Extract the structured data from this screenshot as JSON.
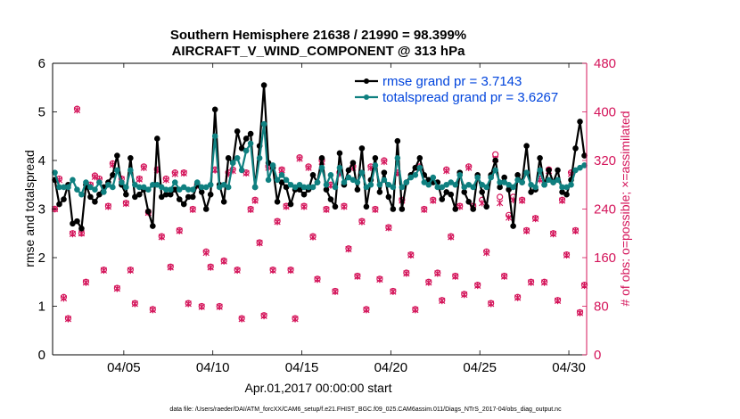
{
  "chart_data": {
    "type": "line",
    "title": "Southern Hemisphere 21638 / 21990 = 98.399%",
    "subtitle": "AIRCRAFT_V_WIND_COMPONENT @ 313 hPa",
    "xlabel": "Apr.01,2017 00:00:00 start",
    "ylabel_left": "rmse and totalspread",
    "ylabel_right": "# of obs: o=possible; ×=assimilated",
    "footer": "data file: /Users/raeder/DAI/ATM_forcXX/CAM6_setup/f.e21.FHIST_BGC.f09_025.CAM6assim.011/Diags_NTrS_2017-04/obs_diag_output.nc",
    "x_ticks": [
      {
        "label": "04/05",
        "day": 5
      },
      {
        "label": "04/10",
        "day": 10
      },
      {
        "label": "04/15",
        "day": 15
      },
      {
        "label": "04/20",
        "day": 20
      },
      {
        "label": "04/25",
        "day": 25
      },
      {
        "label": "04/30",
        "day": 30
      }
    ],
    "xlim": [
      1,
      31
    ],
    "ylim_left": [
      0,
      6
    ],
    "ylim_right": [
      0,
      480
    ],
    "yticks_left": [
      "0",
      "1",
      "2",
      "3",
      "4",
      "5",
      "6"
    ],
    "yticks_right": [
      "0",
      "80",
      "160",
      "240",
      "320",
      "400",
      "480"
    ],
    "legend": [
      {
        "label": "rmse grand pr = 3.7143",
        "color": "#000000"
      },
      {
        "label": "totalspread grand pr = 3.6267",
        "color": "#0f8080"
      }
    ],
    "colors": {
      "rmse": "#000000",
      "spread": "#0f8080",
      "obs": "#d4145a",
      "legend_text": "#0044dd",
      "right_axis": "#d4145a"
    },
    "series": [
      {
        "name": "rmse",
        "x": [
          1.125,
          1.375,
          1.625,
          1.875,
          2.125,
          2.375,
          2.625,
          2.875,
          3.125,
          3.375,
          3.625,
          3.875,
          4.125,
          4.375,
          4.625,
          4.875,
          5.125,
          5.375,
          5.625,
          5.875,
          6.125,
          6.375,
          6.625,
          6.875,
          7.125,
          7.375,
          7.625,
          7.875,
          8.125,
          8.375,
          8.625,
          8.875,
          9.125,
          9.375,
          9.625,
          9.875,
          10.125,
          10.375,
          10.625,
          10.875,
          11.125,
          11.375,
          11.625,
          11.875,
          12.125,
          12.375,
          12.625,
          12.875,
          13.125,
          13.375,
          13.625,
          13.875,
          14.125,
          14.375,
          14.625,
          14.875,
          15.125,
          15.375,
          15.625,
          15.875,
          16.125,
          16.375,
          16.625,
          16.875,
          17.125,
          17.375,
          17.625,
          17.875,
          18.125,
          18.375,
          18.625,
          18.875,
          19.125,
          19.375,
          19.625,
          19.875,
          20.125,
          20.375,
          20.625,
          20.875,
          21.125,
          21.375,
          21.625,
          21.875,
          22.125,
          22.375,
          22.625,
          22.875,
          23.125,
          23.375,
          23.625,
          23.875,
          24.125,
          24.375,
          24.625,
          24.875,
          25.125,
          25.375,
          25.625,
          25.875,
          26.125,
          26.375,
          26.625,
          26.875,
          27.125,
          27.375,
          27.625,
          27.875,
          28.125,
          28.375,
          28.625,
          28.875,
          29.125,
          29.375,
          29.625,
          29.875,
          30.125,
          30.375,
          30.625,
          30.875
        ],
        "values": [
          3.6,
          3.1,
          3.2,
          3.5,
          2.7,
          2.75,
          2.6,
          3.5,
          3.25,
          3.15,
          3.3,
          3.45,
          3.55,
          3.7,
          4.1,
          3.5,
          3.3,
          4.05,
          3.25,
          3.3,
          3.4,
          2.95,
          2.65,
          4.45,
          3.25,
          3.3,
          3.3,
          3.4,
          3.2,
          3.1,
          3.25,
          3.25,
          3.5,
          3.35,
          3.0,
          3.3,
          5.05,
          3.5,
          3.15,
          4.05,
          3.95,
          4.6,
          4.25,
          4.45,
          4.55,
          3.45,
          4.3,
          5.55,
          3.95,
          3.85,
          3.15,
          3.55,
          3.45,
          3.1,
          3.4,
          3.4,
          3.3,
          3.4,
          3.7,
          3.55,
          4.05,
          3.4,
          3.2,
          3.05,
          4.15,
          3.5,
          3.8,
          3.95,
          3.4,
          4.25,
          3.05,
          3.6,
          4.05,
          3.35,
          3.75,
          3.25,
          3.0,
          4.4,
          3.0,
          3.55,
          3.7,
          3.85,
          4.05,
          3.7,
          3.6,
          3.55,
          3.55,
          3.2,
          3.35,
          3.3,
          3.0,
          3.75,
          3.35,
          3.15,
          3.0,
          3.7,
          3.35,
          3.05,
          3.7,
          4.0,
          3.45,
          3.65,
          3.4,
          2.65,
          3.7,
          3.55,
          4.3,
          3.35,
          3.4,
          4.05,
          3.5,
          3.8,
          3.55,
          3.8,
          3.35,
          3.3,
          3.6,
          4.25,
          4.8,
          4.1
        ]
      },
      {
        "name": "totalspread",
        "x": [
          1.125,
          1.375,
          1.625,
          1.875,
          2.125,
          2.375,
          2.625,
          2.875,
          3.125,
          3.375,
          3.625,
          3.875,
          4.125,
          4.375,
          4.625,
          4.875,
          5.125,
          5.375,
          5.625,
          5.875,
          6.125,
          6.375,
          6.625,
          6.875,
          7.125,
          7.375,
          7.625,
          7.875,
          8.125,
          8.375,
          8.625,
          8.875,
          9.125,
          9.375,
          9.625,
          9.875,
          10.125,
          10.375,
          10.625,
          10.875,
          11.125,
          11.375,
          11.625,
          11.875,
          12.125,
          12.375,
          12.625,
          12.875,
          13.125,
          13.375,
          13.625,
          13.875,
          14.125,
          14.375,
          14.625,
          14.875,
          15.125,
          15.375,
          15.625,
          15.875,
          16.125,
          16.375,
          16.625,
          16.875,
          17.125,
          17.375,
          17.625,
          17.875,
          18.125,
          18.375,
          18.625,
          18.875,
          19.125,
          19.375,
          19.625,
          19.875,
          20.125,
          20.375,
          20.625,
          20.875,
          21.125,
          21.375,
          21.625,
          21.875,
          22.125,
          22.375,
          22.625,
          22.875,
          23.125,
          23.375,
          23.625,
          23.875,
          24.125,
          24.375,
          24.625,
          24.875,
          25.125,
          25.375,
          25.625,
          25.875,
          26.125,
          26.375,
          26.625,
          26.875,
          27.125,
          27.375,
          27.625,
          27.875,
          28.125,
          28.375,
          28.625,
          28.875,
          29.125,
          29.375,
          29.625,
          29.875,
          30.125,
          30.375,
          30.625,
          30.875
        ],
        "values": [
          3.75,
          3.45,
          3.45,
          3.45,
          3.6,
          3.4,
          3.3,
          3.55,
          3.45,
          3.4,
          3.55,
          3.35,
          3.5,
          3.45,
          3.8,
          3.55,
          3.45,
          3.8,
          3.5,
          3.45,
          3.45,
          3.4,
          3.5,
          3.5,
          3.45,
          3.4,
          3.4,
          3.55,
          3.4,
          3.45,
          3.4,
          3.4,
          3.55,
          3.45,
          3.45,
          3.5,
          4.5,
          3.45,
          3.5,
          3.45,
          3.95,
          4.05,
          3.8,
          4.2,
          4.35,
          3.45,
          4.05,
          4.75,
          3.6,
          3.9,
          3.6,
          3.7,
          3.6,
          3.5,
          3.45,
          3.5,
          3.45,
          3.45,
          3.45,
          3.55,
          3.85,
          3.5,
          3.7,
          3.45,
          3.85,
          3.55,
          3.65,
          3.6,
          3.55,
          3.75,
          3.45,
          3.5,
          3.9,
          3.5,
          3.6,
          3.5,
          3.45,
          4.05,
          3.45,
          3.55,
          3.65,
          3.7,
          3.85,
          3.55,
          3.5,
          3.65,
          3.45,
          3.45,
          3.5,
          3.55,
          3.5,
          3.7,
          3.45,
          3.5,
          3.45,
          3.65,
          3.5,
          3.45,
          3.65,
          3.8,
          3.55,
          3.55,
          3.5,
          3.45,
          3.6,
          3.55,
          3.75,
          3.5,
          3.45,
          3.8,
          3.5,
          3.6,
          3.55,
          3.6,
          3.45,
          3.45,
          3.5,
          3.8,
          3.85,
          3.9
        ]
      },
      {
        "name": "obs_possible",
        "axis": "right",
        "marker": "o",
        "x": [
          1.125,
          1.375,
          1.625,
          1.875,
          2.125,
          2.375,
          2.625,
          2.875,
          3.125,
          3.375,
          3.625,
          3.875,
          4.125,
          4.375,
          4.625,
          4.875,
          5.125,
          5.375,
          5.625,
          5.875,
          6.125,
          6.375,
          6.625,
          6.875,
          7.125,
          7.375,
          7.625,
          7.875,
          8.125,
          8.375,
          8.625,
          8.875,
          9.125,
          9.375,
          9.625,
          9.875,
          10.125,
          10.375,
          10.625,
          10.875,
          11.125,
          11.375,
          11.625,
          11.875,
          12.125,
          12.375,
          12.625,
          12.875,
          13.125,
          13.375,
          13.625,
          13.875,
          14.125,
          14.375,
          14.625,
          14.875,
          15.125,
          15.375,
          15.625,
          15.875,
          16.125,
          16.375,
          16.625,
          16.875,
          17.125,
          17.375,
          17.625,
          17.875,
          18.125,
          18.375,
          18.625,
          18.875,
          19.125,
          19.375,
          19.625,
          19.875,
          20.125,
          20.375,
          20.625,
          20.875,
          21.125,
          21.375,
          21.625,
          21.875,
          22.125,
          22.375,
          22.625,
          22.875,
          23.125,
          23.375,
          23.625,
          23.875,
          24.125,
          24.375,
          24.625,
          24.875,
          25.125,
          25.375,
          25.625,
          25.875,
          26.125,
          26.375,
          26.625,
          26.875,
          27.125,
          27.375,
          27.625,
          27.875,
          28.125,
          28.375,
          28.625,
          28.875,
          29.125,
          29.375,
          29.625,
          29.875,
          30.125,
          30.375,
          30.625,
          30.875
        ],
        "values": [
          240,
          290,
          95,
          60,
          200,
          405,
          200,
          120,
          280,
          295,
          290,
          140,
          245,
          315,
          110,
          290,
          250,
          140,
          85,
          290,
          310,
          235,
          75,
          305,
          195,
          290,
          145,
          300,
          205,
          300,
          85,
          240,
          280,
          80,
          170,
          145,
          305,
          80,
          155,
          300,
          305,
          140,
          60,
          300,
          240,
          255,
          185,
          65,
          310,
          140,
          220,
          305,
          245,
          140,
          60,
          325,
          245,
          310,
          195,
          125,
          320,
          240,
          280,
          105,
          300,
          245,
          175,
          310,
          130,
          220,
          75,
          310,
          240,
          125,
          320,
          210,
          105,
          300,
          255,
          135,
          165,
          75,
          310,
          240,
          120,
          255,
          135,
          90,
          305,
          195,
          130,
          245,
          100,
          310,
          245,
          115,
          255,
          170,
          85,
          330,
          260,
          130,
          230,
          260,
          95,
          255,
          205,
          120,
          225,
          290,
          120,
          305,
          200,
          90,
          255,
          165,
          300,
          205,
          70,
          115
        ]
      },
      {
        "name": "obs_assimilated",
        "axis": "right",
        "marker": "x",
        "x": [
          1.125,
          1.375,
          1.625,
          1.875,
          2.125,
          2.375,
          2.625,
          2.875,
          3.125,
          3.375,
          3.625,
          3.875,
          4.125,
          4.375,
          4.625,
          4.875,
          5.125,
          5.375,
          5.625,
          5.875,
          6.125,
          6.375,
          6.625,
          6.875,
          7.125,
          7.375,
          7.625,
          7.875,
          8.125,
          8.375,
          8.625,
          8.875,
          9.125,
          9.375,
          9.625,
          9.875,
          10.125,
          10.375,
          10.625,
          10.875,
          11.125,
          11.375,
          11.625,
          11.875,
          12.125,
          12.375,
          12.625,
          12.875,
          13.125,
          13.375,
          13.625,
          13.875,
          14.125,
          14.375,
          14.625,
          14.875,
          15.125,
          15.375,
          15.625,
          15.875,
          16.125,
          16.375,
          16.625,
          16.875,
          17.125,
          17.375,
          17.625,
          17.875,
          18.125,
          18.375,
          18.625,
          18.875,
          19.125,
          19.375,
          19.625,
          19.875,
          20.125,
          20.375,
          20.625,
          20.875,
          21.125,
          21.375,
          21.625,
          21.875,
          22.125,
          22.375,
          22.625,
          22.875,
          23.125,
          23.375,
          23.625,
          23.875,
          24.125,
          24.375,
          24.625,
          24.875,
          25.125,
          25.375,
          25.625,
          25.875,
          26.125,
          26.375,
          26.625,
          26.875,
          27.125,
          27.375,
          27.625,
          27.875,
          28.125,
          28.375,
          28.625,
          28.875,
          29.125,
          29.375,
          29.625,
          29.875,
          30.125,
          30.375,
          30.625,
          30.875
        ],
        "values": [
          240,
          288,
          93,
          59,
          199,
          403,
          200,
          119,
          279,
          293,
          288,
          139,
          244,
          313,
          109,
          289,
          249,
          139,
          84,
          289,
          308,
          234,
          74,
          304,
          194,
          288,
          144,
          298,
          204,
          299,
          84,
          239,
          279,
          79,
          168,
          144,
          304,
          79,
          154,
          298,
          303,
          139,
          59,
          299,
          239,
          254,
          184,
          64,
          308,
          139,
          219,
          304,
          244,
          139,
          59,
          323,
          244,
          308,
          194,
          124,
          318,
          239,
          279,
          104,
          298,
          244,
          174,
          308,
          129,
          219,
          74,
          308,
          239,
          124,
          318,
          209,
          104,
          299,
          254,
          134,
          164,
          74,
          308,
          239,
          119,
          254,
          134,
          89,
          303,
          194,
          129,
          244,
          99,
          308,
          244,
          114,
          250,
          168,
          84,
          322,
          250,
          129,
          226,
          255,
          94,
          254,
          204,
          119,
          224,
          288,
          119,
          303,
          199,
          89,
          254,
          164,
          298,
          204,
          69,
          114
        ]
      }
    ]
  }
}
